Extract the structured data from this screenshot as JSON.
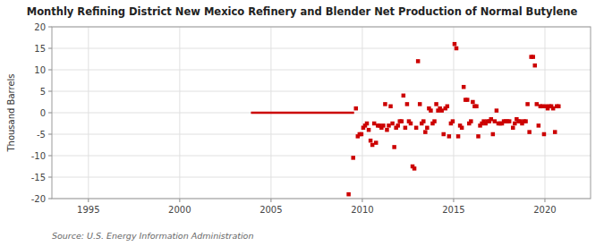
{
  "chart_data": {
    "type": "scatter",
    "title": "Monthly Refining District New Mexico Refinery and Blender Net Production of Normal Butylene",
    "ylabel": "Thousand Barrels",
    "source": "Source: U.S. Energy Information Administration",
    "xlim": [
      1993.0,
      2022.5
    ],
    "ylim": [
      -20,
      20
    ],
    "xticks": [
      1995,
      2000,
      2005,
      2010,
      2015,
      2020
    ],
    "yticks": [
      -20,
      -15,
      -10,
      -5,
      0,
      5,
      10,
      15,
      20
    ],
    "grid": true,
    "series": [
      {
        "type": "line",
        "color": "#CC0000",
        "x": [
          2003.9,
          2009.55
        ],
        "values": [
          0,
          0
        ]
      },
      {
        "type": "scatter",
        "color": "#CC0000",
        "marker": "square",
        "x": [
          2009.25,
          2009.5,
          2009.65,
          2009.75,
          2009.85,
          2009.95,
          2010.05,
          2010.15,
          2010.25,
          2010.35,
          2010.45,
          2010.55,
          2010.65,
          2010.75,
          2010.85,
          2010.95,
          2011.05,
          2011.15,
          2011.25,
          2011.35,
          2011.45,
          2011.55,
          2011.65,
          2011.75,
          2011.85,
          2011.95,
          2012.05,
          2012.15,
          2012.25,
          2012.35,
          2012.45,
          2012.55,
          2012.65,
          2012.75,
          2012.85,
          2012.95,
          2013.05,
          2013.15,
          2013.25,
          2013.35,
          2013.45,
          2013.55,
          2013.65,
          2013.75,
          2013.85,
          2013.95,
          2014.05,
          2014.15,
          2014.25,
          2014.35,
          2014.45,
          2014.55,
          2014.65,
          2014.75,
          2014.85,
          2014.95,
          2015.05,
          2015.15,
          2015.25,
          2015.35,
          2015.45,
          2015.55,
          2015.65,
          2015.75,
          2015.85,
          2015.95,
          2016.05,
          2016.15,
          2016.25,
          2016.35,
          2016.45,
          2016.55,
          2016.65,
          2016.75,
          2016.85,
          2016.95,
          2017.05,
          2017.15,
          2017.25,
          2017.35,
          2017.45,
          2017.55,
          2017.65,
          2017.75,
          2017.85,
          2017.95,
          2018.05,
          2018.25,
          2018.35,
          2018.45,
          2018.55,
          2018.65,
          2018.75,
          2018.85,
          2018.95,
          2019.05,
          2019.15,
          2019.25,
          2019.35,
          2019.45,
          2019.55,
          2019.65,
          2019.75,
          2019.85,
          2019.95,
          2020.05,
          2020.15,
          2020.25,
          2020.35,
          2020.45,
          2020.55,
          2020.65,
          2020.75
        ],
        "values": [
          -19.0,
          -10.5,
          1.0,
          -5.5,
          -5.0,
          -5.0,
          -3.5,
          -3.0,
          -2.5,
          -4.0,
          -6.5,
          -7.5,
          -2.5,
          -7.0,
          -3.0,
          -3.0,
          -3.5,
          -3.0,
          2.0,
          -4.0,
          -3.0,
          1.5,
          -2.5,
          -8.0,
          -3.5,
          -3.0,
          -2.0,
          -2.0,
          4.0,
          -3.5,
          2.0,
          -2.0,
          -2.5,
          -12.5,
          -13.0,
          -3.5,
          12.0,
          2.0,
          -2.5,
          -2.0,
          -4.5,
          -3.5,
          1.0,
          0.5,
          -2.5,
          -2.0,
          2.0,
          0.5,
          1.0,
          0.5,
          -5.0,
          1.0,
          1.5,
          -5.5,
          -2.5,
          -2.0,
          16.0,
          15.0,
          -5.5,
          -3.0,
          -3.5,
          6.0,
          3.0,
          3.0,
          -2.5,
          -2.0,
          2.5,
          1.5,
          1.5,
          -5.5,
          -3.0,
          -2.5,
          -2.0,
          -2.5,
          -2.0,
          -2.0,
          -1.5,
          -5.0,
          -2.0,
          0.5,
          -2.5,
          -2.5,
          -2.5,
          -2.0,
          -2.0,
          -2.0,
          -2.0,
          -3.5,
          -2.5,
          -1.5,
          -2.0,
          -2.0,
          -2.5,
          -2.0,
          -2.0,
          2.0,
          -4.5,
          13.0,
          13.0,
          11.0,
          2.0,
          -3.0,
          1.5,
          1.5,
          -5.0,
          1.5,
          1.0,
          1.5,
          1.5,
          1.0,
          -4.5,
          1.5,
          1.5
        ]
      }
    ]
  }
}
